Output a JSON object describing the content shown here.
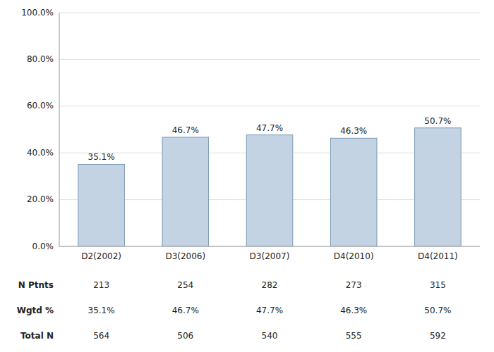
{
  "chart_data": {
    "type": "bar",
    "categories": [
      "D2(2002)",
      "D3(2006)",
      "D3(2007)",
      "D4(2010)",
      "D4(2011)"
    ],
    "values": [
      35.1,
      46.7,
      47.7,
      46.3,
      50.7
    ],
    "value_labels": [
      "35.1%",
      "46.7%",
      "47.7%",
      "46.3%",
      "50.7%"
    ],
    "data_labels": true,
    "color": "#c3d3e4",
    "ylim": [
      0,
      100
    ],
    "yticks": [
      {
        "value": 0,
        "label": "0.0%"
      },
      {
        "value": 20,
        "label": "20.0%"
      },
      {
        "value": 40,
        "label": "40.0%"
      },
      {
        "value": 60,
        "label": "60.0%"
      },
      {
        "value": 80,
        "label": "80.0%"
      },
      {
        "value": 100,
        "label": "100.0%"
      }
    ],
    "grid": true,
    "table": {
      "rows": [
        {
          "name": "N Ptnts",
          "values": [
            213,
            254,
            282,
            273,
            315
          ]
        },
        {
          "name": "Wgtd %",
          "values": [
            35.1,
            46.7,
            47.7,
            46.3,
            50.7
          ],
          "value_labels": [
            "35.1%",
            "46.7%",
            "47.7%",
            "46.3%",
            "50.7%"
          ]
        },
        {
          "name": "Total N",
          "values": [
            564,
            506,
            540,
            555,
            592
          ]
        }
      ]
    }
  }
}
